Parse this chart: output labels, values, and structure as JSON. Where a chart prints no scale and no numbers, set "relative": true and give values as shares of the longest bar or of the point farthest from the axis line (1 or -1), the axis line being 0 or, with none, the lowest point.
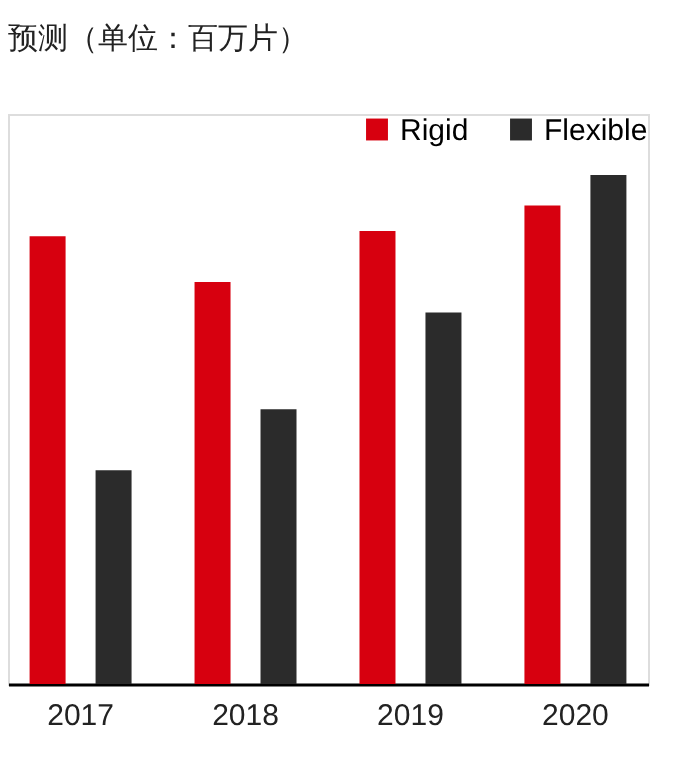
{
  "chart_data": {
    "type": "bar",
    "title": "预测（单位：百万片）",
    "categories": [
      "2017",
      "2018",
      "2019",
      "2020"
    ],
    "relative": true,
    "legend": "top right",
    "series": [
      {
        "name": "Rigid",
        "color": "#d7000f",
        "values": [
          0.88,
          0.79,
          0.89,
          0.94
        ]
      },
      {
        "name": "Flexible",
        "color": "#2b2b2b",
        "values": [
          0.42,
          0.54,
          0.73,
          1.0
        ]
      }
    ]
  }
}
